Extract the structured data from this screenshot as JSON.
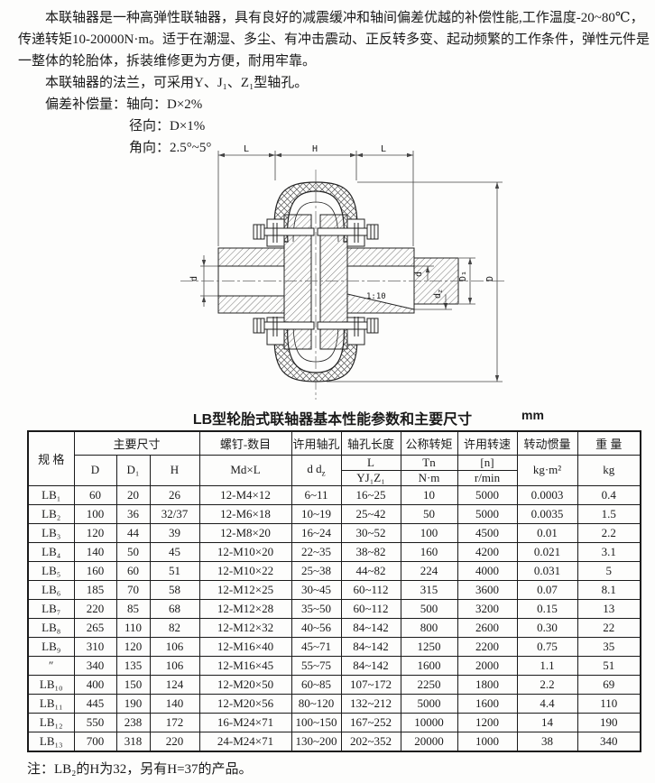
{
  "intro": {
    "line1": "本联轴器是一种高弹性联轴器，具有良好的减震缓冲和轴间偏差优越的补偿性能,工作温度-20~80℃，",
    "line2": "传递转矩10-20000N·m。适于在潮湿、多尘、有冲击震动、正反转多变、起动频繁的工作条件，弹性元件是",
    "line3": "一整体的轮胎体，拆装维修更为方便，耐用牢靠。",
    "line4": "本联轴器的法兰，可采用Y、J₁、Z₁型轴孔。",
    "line5": "偏差补偿量：轴向：D×2%",
    "line6": "径向：D×1%",
    "line7": "角向：2.5°~5°"
  },
  "drawing": {
    "dims": {
      "l_left": "L",
      "h": "H",
      "l_right": "L",
      "d_left": "d",
      "d_right": "d",
      "dz_main": "d",
      "dz_sub": "z",
      "d1": "D₁",
      "d_outer": "D",
      "taper": "1:10"
    }
  },
  "table": {
    "title": "LB型轮胎式联轴器基本性能参数和主要尺寸",
    "unit": "mm",
    "header": {
      "spec": "规  格",
      "main_dims": "主要尺寸",
      "col_d": "D",
      "col_d1": "D₁",
      "col_h": "H",
      "screws": "螺钉-数目",
      "screws_sub": "Md×L",
      "bore": "许用轴孔",
      "bore_sub_main": "d d",
      "bore_sub_sub": "z",
      "bore_len": "轴孔长度",
      "bore_len_l": "L",
      "bore_len_yjz": "YJ₁Z₁",
      "torque": "公称转矩",
      "torque_sym": "Tn",
      "torque_unit": "N·m",
      "speed": "许用转速",
      "speed_sym": "[n]",
      "speed_unit": "r/min",
      "inertia": "转动惯量",
      "inertia_unit": "kg·m²",
      "weight": "重  量",
      "weight_unit": "kg"
    },
    "rows": [
      [
        "LB₁",
        "60",
        "20",
        "26",
        "12-M4×12",
        "6~11",
        "16~25",
        "10",
        "5000",
        "0.0003",
        "0.4"
      ],
      [
        "LB₂",
        "100",
        "36",
        "32/37",
        "12-M6×18",
        "10~19",
        "25~42",
        "50",
        "5000",
        "0.0035",
        "1.5"
      ],
      [
        "LB₃",
        "120",
        "44",
        "39",
        "12-M8×20",
        "16~24",
        "30~52",
        "100",
        "4500",
        "0.01",
        "2.2"
      ],
      [
        "LB₄",
        "140",
        "50",
        "45",
        "12-M10×20",
        "22~35",
        "38~82",
        "160",
        "4200",
        "0.021",
        "3.1"
      ],
      [
        "LB₅",
        "160",
        "60",
        "51",
        "12-M10×22",
        "25~38",
        "44~82",
        "224",
        "4000",
        "0.031",
        "5"
      ],
      [
        "LB₆",
        "185",
        "70",
        "58",
        "12-M12×25",
        "30~45",
        "60~112",
        "315",
        "3600",
        "0.07",
        "8.1"
      ],
      [
        "LB₇",
        "220",
        "85",
        "68",
        "12-M12×28",
        "35~50",
        "60~112",
        "500",
        "3200",
        "0.15",
        "13"
      ],
      [
        "LB₈",
        "265",
        "110",
        "82",
        "12-M12×32",
        "40~56",
        "84~142",
        "800",
        "2600",
        "0.30",
        "22"
      ],
      [
        "LB₉",
        "310",
        "120",
        "106",
        "12-M16×40",
        "45~71",
        "84~142",
        "1250",
        "2200",
        "0.75",
        "35"
      ],
      [
        "″",
        "340",
        "135",
        "106",
        "12-M16×45",
        "55~75",
        "84~142",
        "1600",
        "2000",
        "1.1",
        "51"
      ],
      [
        "LB₁₀",
        "400",
        "150",
        "124",
        "12-M20×50",
        "60~85",
        "107~172",
        "2250",
        "1800",
        "2.2",
        "69"
      ],
      [
        "LB₁₁",
        "445",
        "190",
        "140",
        "12-M20×56",
        "80~120",
        "132~212",
        "5000",
        "1600",
        "4.4",
        "110"
      ],
      [
        "LB₁₂",
        "550",
        "238",
        "172",
        "16-M24×71",
        "100~150",
        "167~252",
        "10000",
        "1200",
        "14",
        "190"
      ],
      [
        "LB₁₃",
        "700",
        "318",
        "220",
        "24-M24×71",
        "130~200",
        "202~352",
        "20000",
        "1000",
        "38",
        "340"
      ]
    ]
  },
  "note": "注：LB₂的H为32，另有H=37的产品。"
}
